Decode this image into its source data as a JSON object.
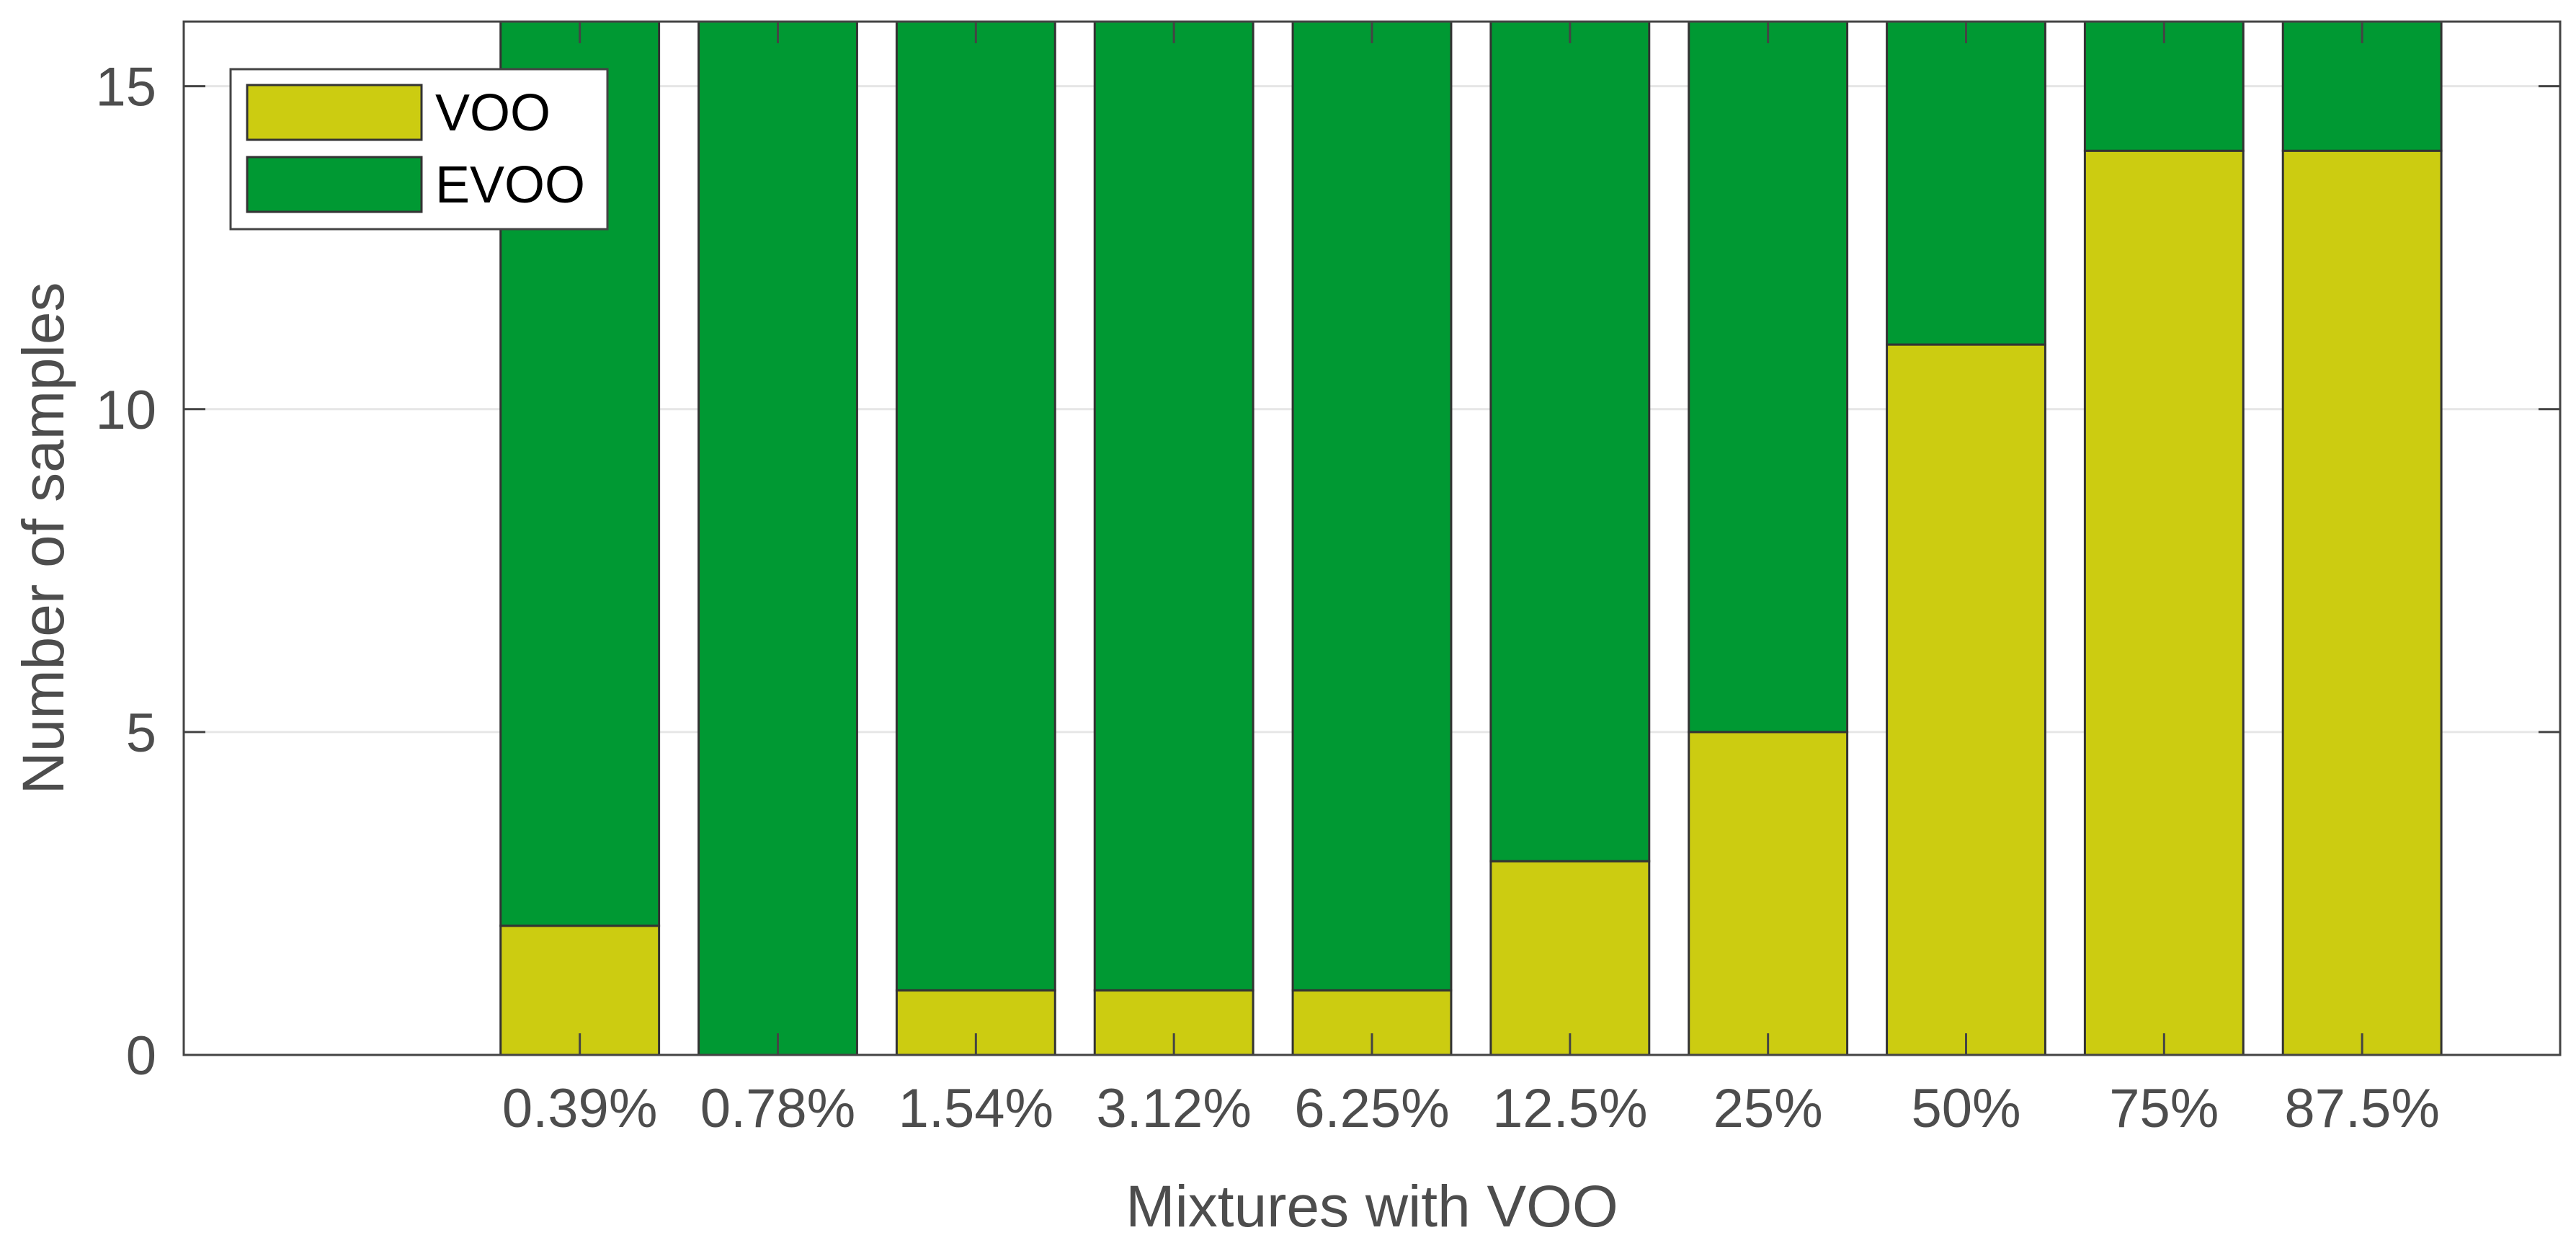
{
  "chart_data": {
    "type": "bar",
    "stacked": true,
    "title": "",
    "xlabel": "Mixtures with VOO",
    "ylabel": "Number of samples",
    "categories": [
      "0.39%",
      "0.78%",
      "1.54%",
      "3.12%",
      "6.25%",
      "12.5%",
      "25%",
      "50%",
      "75%",
      "87.5%"
    ],
    "x_range": [
      0,
      12
    ],
    "x_positions": [
      2,
      3,
      4,
      5,
      6,
      7,
      8,
      9,
      10,
      11
    ],
    "ylim": [
      0,
      16
    ],
    "yticks": [
      0,
      5,
      10,
      15
    ],
    "grid": "y",
    "legend_position": "top-left",
    "series": [
      {
        "name": "VOO",
        "color": "#cccc11",
        "values": [
          2,
          0,
          1,
          1,
          1,
          3,
          5,
          11,
          14,
          14
        ]
      },
      {
        "name": "EVOO",
        "color": "#009933",
        "values": [
          14,
          16,
          15,
          15,
          15,
          13,
          11,
          5,
          2,
          2
        ]
      }
    ]
  }
}
